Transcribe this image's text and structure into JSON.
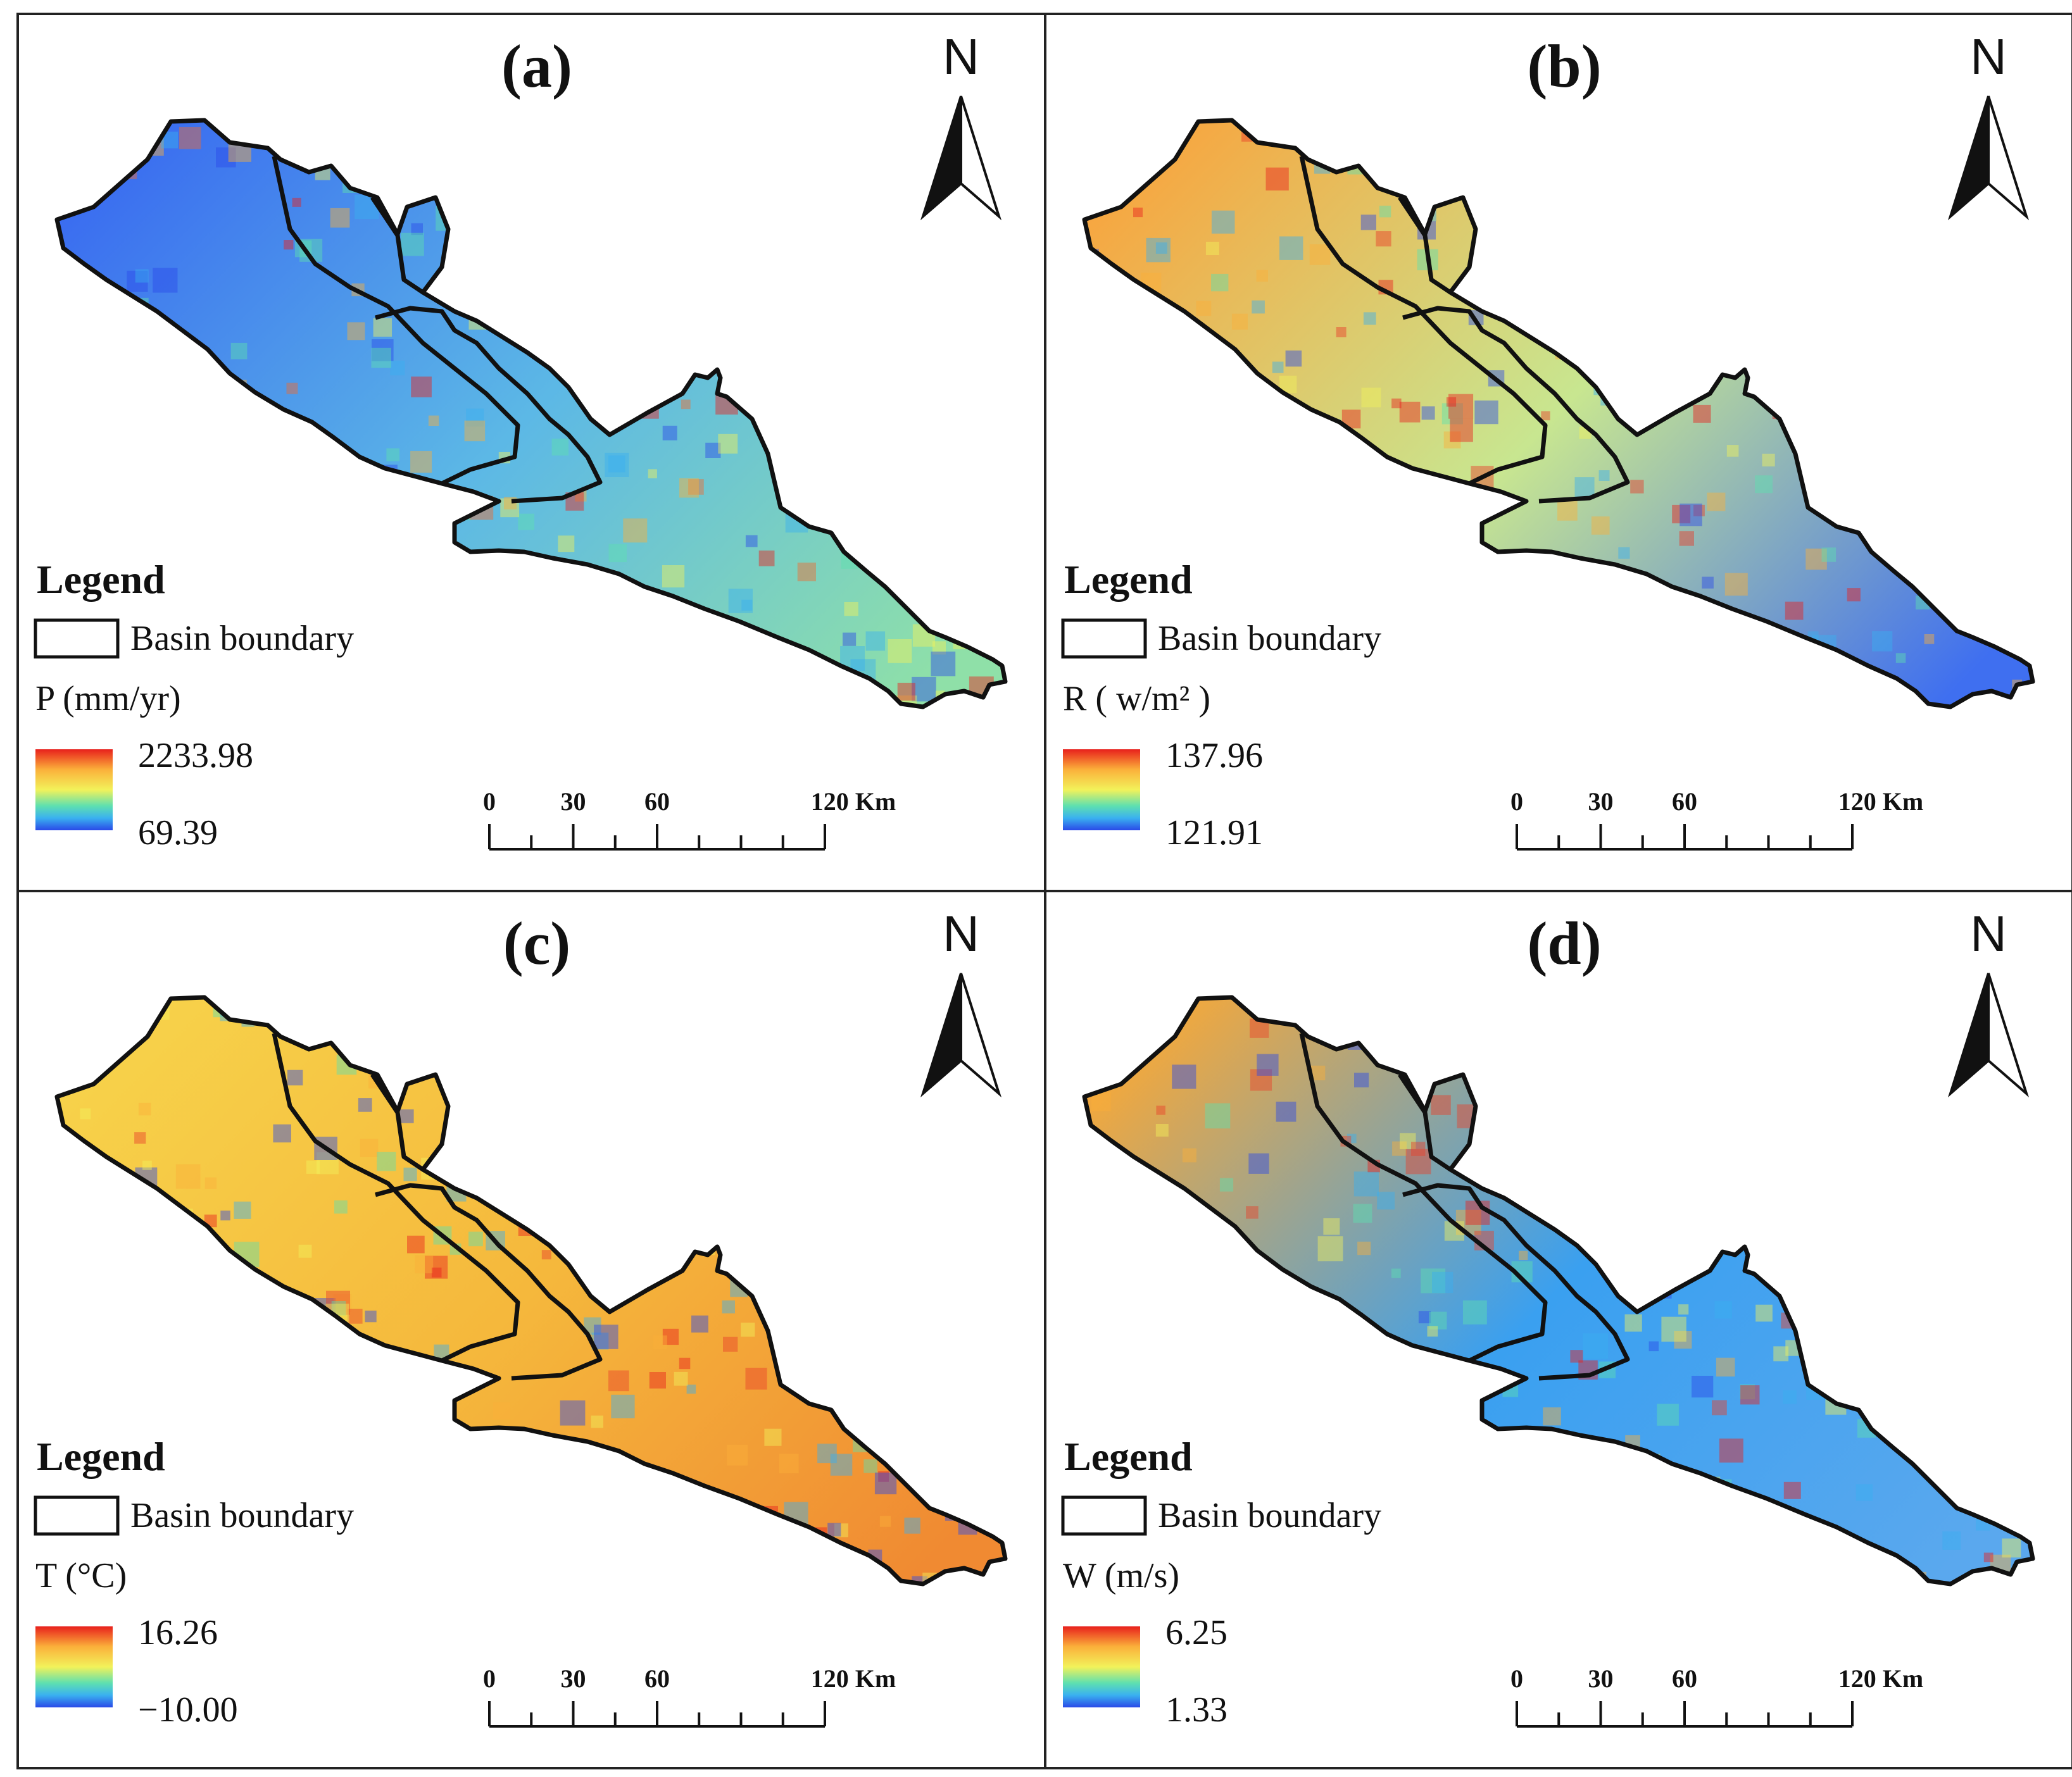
{
  "panels": [
    {
      "id": "a",
      "label": "(a)",
      "north": "N",
      "legend": {
        "title": "Legend",
        "boundary_label": "Basin boundary",
        "variable_label": "P (mm/yr)",
        "max": "2233.98",
        "min": "69.39"
      },
      "scale": {
        "ticks": [
          "0",
          "30",
          "60",
          "120 Km"
        ]
      },
      "colors": {
        "nw": "#3a6cf0",
        "mid": "#5cb8e6",
        "se": "#8fe0a8",
        "hot": "#f06a30"
      }
    },
    {
      "id": "b",
      "label": "(b)",
      "north": "N",
      "legend": {
        "title": "Legend",
        "boundary_label": "Basin boundary",
        "variable_label": "R ( w/m²  )",
        "max": "137.96",
        "min": "121.91"
      },
      "scale": {
        "ticks": [
          "0",
          "30",
          "60",
          "120 Km"
        ]
      },
      "colors": {
        "nw": "#f7a640",
        "mid": "#c8e690",
        "se": "#3f6ff0",
        "hot": "#e83a28"
      }
    },
    {
      "id": "c",
      "label": "(c)",
      "north": "N",
      "legend": {
        "title": "Legend",
        "boundary_label": "Basin boundary",
        "variable_label": "T (°C)",
        "max": "16.26",
        "min": "−10.00"
      },
      "scale": {
        "ticks": [
          "0",
          "30",
          "60",
          "120 Km"
        ]
      },
      "colors": {
        "nw": "#f7d24a",
        "mid": "#f5b83c",
        "se": "#f08a32",
        "hot": "#e8402a"
      }
    },
    {
      "id": "d",
      "label": "(d)",
      "north": "N",
      "legend": {
        "title": "Legend",
        "boundary_label": "Basin boundary",
        "variable_label": "W (m/s)",
        "max": "6.25",
        "min": "1.33"
      },
      "scale": {
        "ticks": [
          "0",
          "30",
          "60",
          "120 Km"
        ]
      },
      "colors": {
        "nw": "#f5a83a",
        "mid": "#3aa0f0",
        "se": "#5aa8ee",
        "hot": "#e8402a"
      }
    }
  ]
}
